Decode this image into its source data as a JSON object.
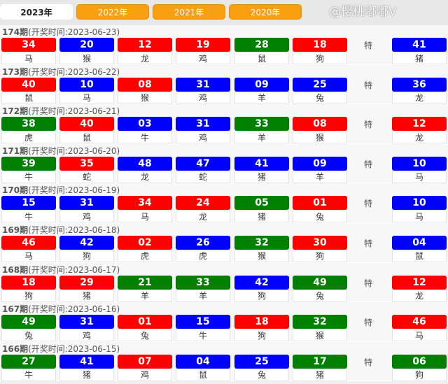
{
  "tabs": [
    "2023年",
    "2022年",
    "2021年",
    "2020年"
  ],
  "active_tab": 0,
  "special_label": "特",
  "colors": {
    "r": "#ff0000",
    "b": "#0000ff",
    "g": "#008000",
    "tab": "#f8a00f"
  },
  "watermark": "@樱桃嘟嘟V",
  "draws": [
    {
      "issue": "174期",
      "time": "(开奖时间:2023-06-23)",
      "balls": [
        [
          "34",
          "马",
          "r"
        ],
        [
          "20",
          "猴",
          "b"
        ],
        [
          "12",
          "龙",
          "r"
        ],
        [
          "19",
          "鸡",
          "r"
        ],
        [
          "28",
          "鼠",
          "g"
        ],
        [
          "18",
          "狗",
          "r"
        ]
      ],
      "special": [
        "41",
        "猪",
        "b"
      ]
    },
    {
      "issue": "173期",
      "time": "(开奖时间:2023-06-22)",
      "balls": [
        [
          "40",
          "鼠",
          "r"
        ],
        [
          "10",
          "马",
          "b"
        ],
        [
          "08",
          "猴",
          "r"
        ],
        [
          "31",
          "鸡",
          "b"
        ],
        [
          "09",
          "羊",
          "b"
        ],
        [
          "25",
          "兔",
          "b"
        ]
      ],
      "special": [
        "36",
        "龙",
        "b"
      ]
    },
    {
      "issue": "172期",
      "time": "(开奖时间:2023-06-21)",
      "balls": [
        [
          "38",
          "虎",
          "g"
        ],
        [
          "40",
          "鼠",
          "r"
        ],
        [
          "03",
          "牛",
          "b"
        ],
        [
          "31",
          "鸡",
          "b"
        ],
        [
          "33",
          "羊",
          "g"
        ],
        [
          "08",
          "猴",
          "r"
        ]
      ],
      "special": [
        "12",
        "龙",
        "r"
      ]
    },
    {
      "issue": "171期",
      "time": "(开奖时间:2023-06-20)",
      "balls": [
        [
          "39",
          "牛",
          "g"
        ],
        [
          "35",
          "蛇",
          "r"
        ],
        [
          "48",
          "龙",
          "b"
        ],
        [
          "47",
          "蛇",
          "b"
        ],
        [
          "41",
          "猪",
          "b"
        ],
        [
          "09",
          "羊",
          "b"
        ]
      ],
      "special": [
        "10",
        "马",
        "b"
      ]
    },
    {
      "issue": "170期",
      "time": "(开奖时间:2023-06-19)",
      "balls": [
        [
          "15",
          "牛",
          "b"
        ],
        [
          "31",
          "鸡",
          "b"
        ],
        [
          "34",
          "马",
          "r"
        ],
        [
          "24",
          "龙",
          "r"
        ],
        [
          "05",
          "猪",
          "g"
        ],
        [
          "01",
          "兔",
          "r"
        ]
      ],
      "special": [
        "10",
        "马",
        "b"
      ]
    },
    {
      "issue": "169期",
      "time": "(开奖时间:2023-06-18)",
      "balls": [
        [
          "46",
          "马",
          "r"
        ],
        [
          "42",
          "狗",
          "b"
        ],
        [
          "02",
          "虎",
          "r"
        ],
        [
          "26",
          "虎",
          "b"
        ],
        [
          "32",
          "猴",
          "g"
        ],
        [
          "30",
          "狗",
          "r"
        ]
      ],
      "special": [
        "04",
        "鼠",
        "b"
      ]
    },
    {
      "issue": "168期",
      "time": "(开奖时间:2023-06-17)",
      "balls": [
        [
          "18",
          "狗",
          "r"
        ],
        [
          "29",
          "猪",
          "r"
        ],
        [
          "21",
          "羊",
          "g"
        ],
        [
          "33",
          "羊",
          "g"
        ],
        [
          "42",
          "狗",
          "b"
        ],
        [
          "49",
          "兔",
          "g"
        ]
      ],
      "special": [
        "12",
        "龙",
        "r"
      ]
    },
    {
      "issue": "167期",
      "time": "(开奖时间:2023-06-16)",
      "balls": [
        [
          "49",
          "兔",
          "g"
        ],
        [
          "31",
          "鸡",
          "b"
        ],
        [
          "01",
          "兔",
          "r"
        ],
        [
          "15",
          "牛",
          "b"
        ],
        [
          "18",
          "狗",
          "r"
        ],
        [
          "32",
          "猴",
          "g"
        ]
      ],
      "special": [
        "46",
        "马",
        "r"
      ]
    },
    {
      "issue": "166期",
      "time": "(开奖时间:2023-06-15)",
      "balls": [
        [
          "27",
          "牛",
          "g"
        ],
        [
          "41",
          "猪",
          "b"
        ],
        [
          "07",
          "鸡",
          "r"
        ],
        [
          "04",
          "鼠",
          "b"
        ],
        [
          "25",
          "兔",
          "b"
        ],
        [
          "17",
          "猪",
          "g"
        ]
      ],
      "special": [
        "06",
        "狗",
        "g"
      ]
    }
  ]
}
